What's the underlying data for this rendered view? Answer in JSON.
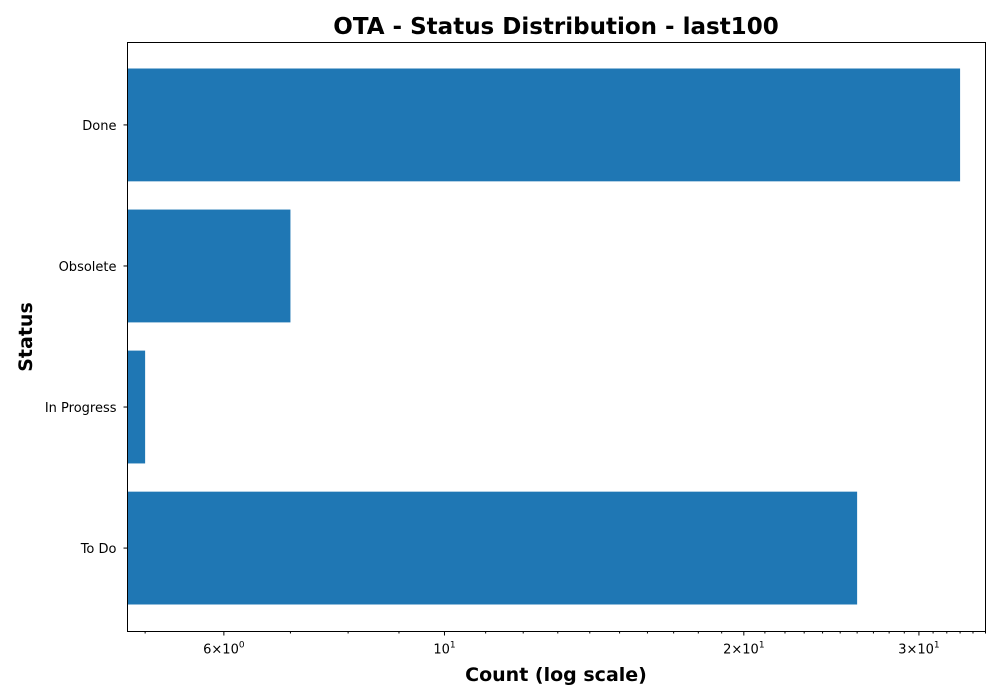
{
  "chart_data": {
    "type": "bar",
    "orientation": "horizontal",
    "title": "OTA - Status Distribution - last100",
    "xlabel": "Count (log scale)",
    "ylabel": "Status",
    "x_scale": "log",
    "xlim": [
      4.8,
      35
    ],
    "categories": [
      "Done",
      "Obsolete",
      "In Progress",
      "To Do"
    ],
    "values": [
      33,
      7,
      5,
      26
    ],
    "x_ticks": [
      {
        "value": 6,
        "base": "6×10",
        "exp": "0"
      },
      {
        "value": 10,
        "base": "10",
        "exp": "1"
      },
      {
        "value": 20,
        "base": "2×10",
        "exp": "1"
      },
      {
        "value": 30,
        "base": "3×10",
        "exp": "1"
      }
    ],
    "bar_color": "#1f77b4",
    "grid": false
  }
}
